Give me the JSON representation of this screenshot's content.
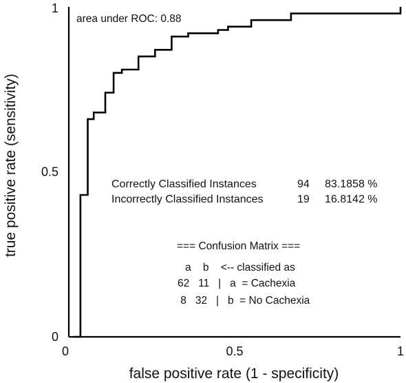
{
  "chart_data": {
    "type": "line",
    "xlabel": "false positive rate (1 - specificity)",
    "ylabel": "true positive rate (sensitivity)",
    "xlim": [
      0,
      1
    ],
    "ylim": [
      0,
      1
    ],
    "x_ticks": [
      "0",
      "0.5",
      "1"
    ],
    "y_ticks": [
      "0",
      "0.5",
      "1"
    ],
    "grid": false,
    "auc_label": "area under ROC: 0.88",
    "series": [
      {
        "x": [
          0.015,
          0.015,
          0.035,
          0.035,
          0.057,
          0.057,
          0.075,
          0.075,
          0.11,
          0.11,
          0.135,
          0.135,
          0.16,
          0.16,
          0.21,
          0.21,
          0.26,
          0.26,
          0.31,
          0.31,
          0.36,
          0.36,
          0.45,
          0.45,
          0.48,
          0.48,
          0.55,
          0.55,
          0.67,
          0.67,
          1.0,
          1.0
        ],
        "y": [
          0.0,
          0.0,
          0.0,
          0.43,
          0.43,
          0.66,
          0.66,
          0.68,
          0.68,
          0.74,
          0.74,
          0.8,
          0.8,
          0.81,
          0.81,
          0.85,
          0.85,
          0.87,
          0.87,
          0.91,
          0.91,
          0.92,
          0.92,
          0.93,
          0.93,
          0.94,
          0.94,
          0.96,
          0.96,
          0.98,
          0.98,
          1.0
        ]
      }
    ],
    "stats": [
      {
        "label": "Correctly Classified Instances",
        "count": "94",
        "percent": "83.1858 %"
      },
      {
        "label": "Incorrectly Classified Instances",
        "count": "19",
        "percent": "16.8142 %"
      }
    ],
    "confusion_matrix": {
      "title": "=== Confusion Matrix ===",
      "header": "a    b    <-- classified as",
      "rows": [
        "62   11   |   a  = Cachexia",
        " 8   32   |   b  = No Cachexia"
      ]
    }
  }
}
